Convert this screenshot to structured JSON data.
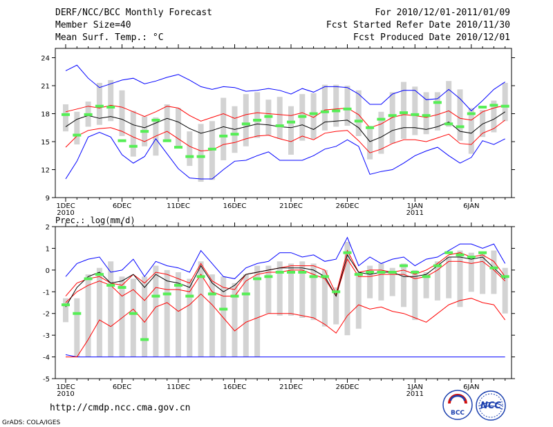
{
  "header": {
    "title": "DERF/NCC/BCC Monthly Forecast",
    "member_size": "Member Size=40",
    "variable": "Mean Surf. Temp.: °C",
    "forecast_period": "For 2010/12/01-2011/01/09",
    "fcst_started": "Fcst Started Refer Date 2010/11/30",
    "fcst_produced": "Fcst Produced Date 2010/12/01"
  },
  "footer": {
    "url": "http://cmdp.ncc.cma.gov.cn",
    "grads": "GrADS: COLA/IGES",
    "bcc_logo": "BCC",
    "ncc_logo": "NCC"
  },
  "colors": {
    "max_min": "#0000ff",
    "percentile": "#ff0000",
    "mean": "#000000",
    "box": "#d3d3d3",
    "marker": "#55ee55"
  },
  "x_axis": {
    "tick_days": [
      1,
      6,
      11,
      16,
      21,
      26,
      32,
      37
    ],
    "tick_labels": [
      "1DEC",
      "6DEC",
      "11DEC",
      "16DEC",
      "21DEC",
      "26DEC",
      "1JAN",
      "6JAN"
    ],
    "year_labels": [
      {
        "day": 1,
        "label": "2010"
      },
      {
        "day": 32,
        "label": "2011"
      }
    ]
  },
  "chart_data": [
    {
      "type": "line",
      "title": "Mean Surf. Temp.: °C",
      "ylim": [
        9,
        25
      ],
      "yticks": [
        9,
        12,
        15,
        18,
        21,
        24
      ],
      "x": [
        1,
        2,
        3,
        4,
        5,
        6,
        7,
        8,
        9,
        10,
        11,
        12,
        13,
        14,
        15,
        16,
        17,
        18,
        19,
        20,
        21,
        22,
        23,
        24,
        25,
        26,
        27,
        28,
        29,
        30,
        31,
        32,
        33,
        34,
        35,
        36,
        37,
        38,
        39,
        40
      ],
      "series": [
        {
          "name": "max",
          "values": [
            22.6,
            23.2,
            21.8,
            20.8,
            21.2,
            21.6,
            21.8,
            21.2,
            21.5,
            21.9,
            22.2,
            21.6,
            20.9,
            20.6,
            20.9,
            20.8,
            20.4,
            20.5,
            20.7,
            20.5,
            20.1,
            20.7,
            20.3,
            20.9,
            20.9,
            20.8,
            20.1,
            19.0,
            19.0,
            20.1,
            20.5,
            20.5,
            19.5,
            19.6,
            20.6,
            19.6,
            18.3,
            19.4,
            20.6,
            21.4
          ]
        },
        {
          "name": "p90",
          "values": [
            18.2,
            18.5,
            18.8,
            18.6,
            18.9,
            18.7,
            18.2,
            17.7,
            18.2,
            18.8,
            18.6,
            17.8,
            17.2,
            17.6,
            18.0,
            17.5,
            17.9,
            18.1,
            18.0,
            17.9,
            17.8,
            18.1,
            17.6,
            18.4,
            18.5,
            18.6,
            17.9,
            16.5,
            16.9,
            17.6,
            17.9,
            17.8,
            17.6,
            17.9,
            18.3,
            17.5,
            17.3,
            18.2,
            18.6,
            18.9
          ]
        },
        {
          "name": "mean",
          "values": [
            16.6,
            17.4,
            17.8,
            17.5,
            17.7,
            17.4,
            16.8,
            16.5,
            17.0,
            17.5,
            17.1,
            16.4,
            15.9,
            16.2,
            16.6,
            16.3,
            16.6,
            16.9,
            16.8,
            16.6,
            16.5,
            16.8,
            16.3,
            17.1,
            17.2,
            17.3,
            16.5,
            15.0,
            15.5,
            16.2,
            16.5,
            16.5,
            16.3,
            16.6,
            17.1,
            16.1,
            15.9,
            16.9,
            17.4,
            18.2
          ]
        },
        {
          "name": "p10",
          "values": [
            14.4,
            15.6,
            16.2,
            16.4,
            16.5,
            16.1,
            15.5,
            15.0,
            15.6,
            16.1,
            15.3,
            14.5,
            14.0,
            14.1,
            14.7,
            14.9,
            15.3,
            15.6,
            15.7,
            15.3,
            15.0,
            15.6,
            15.2,
            15.9,
            16.1,
            16.2,
            15.1,
            13.8,
            14.2,
            14.8,
            15.2,
            15.2,
            15.0,
            15.4,
            15.8,
            14.8,
            14.7,
            15.9,
            16.4,
            17.3
          ]
        },
        {
          "name": "min",
          "values": [
            11.0,
            12.9,
            15.5,
            16.0,
            15.5,
            13.6,
            12.7,
            13.4,
            15.3,
            13.7,
            12.1,
            11.1,
            11.0,
            11.0,
            12.0,
            12.9,
            13.0,
            13.5,
            13.9,
            13.0,
            13.0,
            13.0,
            13.5,
            14.2,
            14.5,
            15.2,
            14.5,
            11.5,
            11.8,
            12.0,
            12.7,
            13.5,
            14.0,
            14.4,
            13.5,
            12.7,
            13.3,
            15.1,
            14.7,
            15.3
          ]
        },
        {
          "name": "box_top",
          "values": [
            19.0,
            18.2,
            19.3,
            21.3,
            21.6,
            20.5,
            18.3,
            17.7,
            17.6,
            19.0,
            18.6,
            16.1,
            16.9,
            17.2,
            19.7,
            18.8,
            20.1,
            20.3,
            19.5,
            19.8,
            18.8,
            20.1,
            20.2,
            21.1,
            21.1,
            21.0,
            20.5,
            16.7,
            18.2,
            20.3,
            21.4,
            20.9,
            20.3,
            20.3,
            21.5,
            20.6,
            18.6,
            18.4,
            19.4,
            21.3
          ]
        },
        {
          "name": "box_bottom",
          "values": [
            16.1,
            14.7,
            16.6,
            16.8,
            17.2,
            15.6,
            13.4,
            14.5,
            13.5,
            15.1,
            14.4,
            12.4,
            10.7,
            10.9,
            13.0,
            13.8,
            14.5,
            15.4,
            15.7,
            15.3,
            13.6,
            15.1,
            15.3,
            16.2,
            16.6,
            16.7,
            15.6,
            13.1,
            13.7,
            14.8,
            15.3,
            15.7,
            15.8,
            16.2,
            16.6,
            15.1,
            13.7,
            15.5,
            16.0,
            17.2
          ]
        },
        {
          "name": "marker",
          "values": [
            17.9,
            15.7,
            17.9,
            18.8,
            18.7,
            15.1,
            14.5,
            16.1,
            17.3,
            15.1,
            14.4,
            13.4,
            13.4,
            14.2,
            15.6,
            15.8,
            16.9,
            17.3,
            17.7,
            16.7,
            17.1,
            17.7,
            18.0,
            18.2,
            18.3,
            18.5,
            17.2,
            16.5,
            17.4,
            17.8,
            18.1,
            17.9,
            17.8,
            19.2,
            16.9,
            16.6,
            18.0,
            18.7,
            18.9,
            18.8
          ]
        }
      ]
    },
    {
      "type": "line",
      "title": "Prec.: log(mm/d)",
      "ylim": [
        -5,
        2
      ],
      "yticks": [
        -5,
        -4,
        -3,
        -2,
        -1,
        0,
        1,
        2
      ],
      "x": [
        1,
        2,
        3,
        4,
        5,
        6,
        7,
        8,
        9,
        10,
        11,
        12,
        13,
        14,
        15,
        16,
        17,
        18,
        19,
        20,
        21,
        22,
        23,
        24,
        25,
        26,
        27,
        28,
        29,
        30,
        31,
        32,
        33,
        34,
        35,
        36,
        37,
        38,
        39,
        40
      ],
      "series": [
        {
          "name": "max",
          "values": [
            -0.3,
            0.3,
            0.5,
            0.6,
            -0.1,
            0.0,
            0.5,
            -0.3,
            0.4,
            0.2,
            0.1,
            -0.1,
            0.9,
            0.3,
            -0.3,
            -0.4,
            0.1,
            0.3,
            0.4,
            0.8,
            0.8,
            0.6,
            0.7,
            0.4,
            0.5,
            1.5,
            0.2,
            0.6,
            0.3,
            0.5,
            0.6,
            0.2,
            0.5,
            0.6,
            0.9,
            1.2,
            1.2,
            1.0,
            1.2,
            0.3
          ]
        },
        {
          "name": "p90",
          "values": [
            -1.2,
            -0.6,
            -0.4,
            -0.3,
            -0.6,
            -0.7,
            -0.2,
            -0.6,
            -0.1,
            -0.2,
            -0.4,
            -0.6,
            0.3,
            -0.5,
            -0.8,
            -0.9,
            -0.2,
            -0.1,
            0.0,
            0.1,
            0.2,
            0.2,
            0.2,
            0.0,
            -1.1,
            0.9,
            -0.1,
            0.0,
            0.0,
            -0.1,
            0.0,
            -0.2,
            0.0,
            0.3,
            0.7,
            0.8,
            0.6,
            0.7,
            0.4,
            -0.3
          ]
        },
        {
          "name": "mean",
          "values": [
            -1.7,
            -0.8,
            -0.3,
            -0.1,
            -0.6,
            -0.5,
            -0.2,
            -0.8,
            -0.2,
            -0.5,
            -0.6,
            -0.8,
            0.2,
            -0.6,
            -1.0,
            -0.7,
            -0.2,
            -0.1,
            0.0,
            0.1,
            0.1,
            0.1,
            0.0,
            -0.3,
            -1.2,
            0.7,
            -0.1,
            -0.2,
            -0.1,
            -0.1,
            -0.3,
            -0.3,
            -0.2,
            0.2,
            0.6,
            0.6,
            0.5,
            0.6,
            0.1,
            -0.4
          ]
        },
        {
          "name": "p10",
          "values": [
            -1.5,
            -1.0,
            -0.7,
            -0.5,
            -0.7,
            -1.2,
            -0.9,
            -1.4,
            -0.8,
            -0.9,
            -0.9,
            -1.0,
            -0.2,
            -1.0,
            -1.2,
            -1.2,
            -0.5,
            -0.2,
            -0.1,
            -0.1,
            0.0,
            0.0,
            -0.2,
            -0.4,
            -1.2,
            0.5,
            -0.3,
            -0.3,
            -0.2,
            -0.2,
            -0.2,
            -0.4,
            -0.3,
            0.0,
            0.4,
            0.4,
            0.3,
            0.4,
            0.0,
            -0.5
          ]
        },
        {
          "name": "p_low",
          "values": [
            -4.0,
            -4.0,
            -3.2,
            -2.3,
            -2.6,
            -2.2,
            -1.8,
            -2.4,
            -1.7,
            -1.5,
            -1.9,
            -1.6,
            -1.1,
            -1.6,
            -2.2,
            -2.8,
            -2.4,
            -2.2,
            -2.0,
            -2.0,
            -2.0,
            -2.1,
            -2.2,
            -2.5,
            -2.9,
            -2.1,
            -1.6,
            -1.8,
            -1.7,
            -1.9,
            -2.0,
            -2.2,
            -2.4,
            -2.0,
            -1.6,
            -1.4,
            -1.3,
            -1.5,
            -1.6,
            -2.3
          ]
        },
        {
          "name": "min",
          "values": [
            -3.9,
            -4.0,
            -4.0,
            -4.0,
            -4.0,
            -4.0,
            -4.0,
            -4.0,
            -4.0,
            -4.0,
            -4.0,
            -4.0,
            -4.0,
            -4.0,
            -4.0,
            -4.0,
            -4.0,
            -4.0,
            -4.0,
            -4.0,
            -4.0,
            -4.0,
            -4.0,
            -4.0,
            -4.0,
            -4.0,
            -4.0,
            -4.0,
            -4.0,
            -4.0,
            -4.0,
            -4.0,
            -4.0,
            -4.0,
            -4.0,
            -4.0,
            -4.0,
            -4.0,
            -4.0,
            -4.0
          ]
        },
        {
          "name": "box_top",
          "values": [
            -1.3,
            -1.3,
            -0.2,
            0.1,
            0.4,
            -0.3,
            -0.4,
            -0.3,
            0.2,
            0.0,
            -0.1,
            -0.4,
            0.4,
            -0.2,
            -0.3,
            -0.6,
            -0.2,
            0.2,
            0.2,
            0.4,
            0.3,
            0.4,
            0.3,
            0.0,
            -0.8,
            1.3,
            -0.1,
            0.2,
            0.3,
            0.1,
            0.3,
            0.0,
            -0.1,
            0.4,
            0.6,
            0.9,
            0.8,
            0.8,
            0.9,
            0.1
          ]
        },
        {
          "name": "box_bottom",
          "values": [
            -2.4,
            -4.0,
            -4.0,
            -4.0,
            -4.0,
            -4.0,
            -4.0,
            -4.0,
            -4.0,
            -4.0,
            -4.0,
            -4.0,
            -4.0,
            -4.0,
            -4.0,
            -4.0,
            -4.0,
            -4.0,
            -2.0,
            -2.1,
            -2.1,
            -2.2,
            -2.3,
            -2.6,
            -2.5,
            -3.0,
            -2.7,
            -1.3,
            -1.4,
            -1.2,
            -1.7,
            -2.3,
            -1.3,
            -1.4,
            -1.3,
            -1.7,
            -1.0,
            -1.1,
            -1.1,
            -2.0
          ]
        },
        {
          "name": "marker",
          "values": [
            -1.6,
            -2.0,
            -0.4,
            -0.2,
            -0.7,
            -0.8,
            -2.0,
            -3.2,
            -1.2,
            -1.1,
            -0.7,
            -1.2,
            -0.3,
            -1.1,
            -1.8,
            -1.2,
            -1.1,
            -0.4,
            -0.3,
            -0.1,
            -0.1,
            -0.1,
            -0.3,
            -0.3,
            -1.0,
            0.8,
            -0.2,
            -0.1,
            -0.1,
            -0.1,
            0.2,
            -0.1,
            -0.3,
            0.2,
            0.8,
            0.7,
            0.6,
            0.8,
            0.1,
            -0.3
          ]
        }
      ]
    }
  ]
}
